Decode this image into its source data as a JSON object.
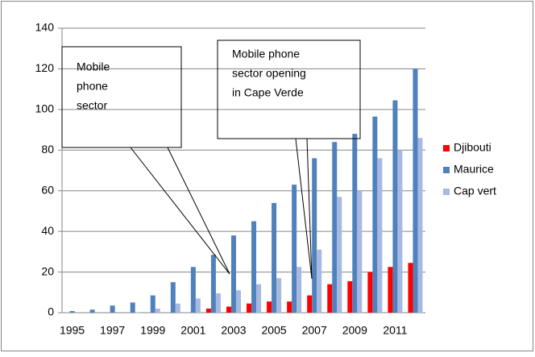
{
  "chart_data": {
    "type": "bar",
    "categories": [
      "1995",
      null,
      "1997",
      null,
      "1999",
      null,
      "2001",
      null,
      "2003",
      null,
      "2005",
      null,
      "2007",
      null,
      "2009",
      null,
      "2011",
      null
    ],
    "series": [
      {
        "name": "Djibouti",
        "color": "#ff0000",
        "values": [
          0,
          0,
          0,
          0,
          0,
          0,
          0,
          2,
          3,
          4.5,
          5.5,
          5.5,
          8.5,
          14,
          15.5,
          20,
          22.5,
          24.5
        ]
      },
      {
        "name": "Maurice",
        "color": "#4f81bd",
        "values": [
          0.8,
          1.5,
          3.5,
          5,
          8.5,
          15,
          22.5,
          28.5,
          38,
          45,
          54,
          63,
          76,
          84,
          88,
          96.5,
          104.5,
          120
        ]
      },
      {
        "name": "Cap vert",
        "color": "#a7b9e0",
        "values": [
          0,
          0,
          0,
          0.2,
          2,
          4.5,
          7,
          9.5,
          11,
          14,
          17,
          22.5,
          31,
          57,
          60,
          76,
          80,
          86
        ]
      }
    ],
    "ylim": [
      0,
      140
    ],
    "yticks": [
      0,
      20,
      40,
      60,
      80,
      100,
      120,
      140
    ],
    "grid": true,
    "legend": "right",
    "annotations": [
      {
        "lines": [
          "Mobile",
          "phone",
          "sector"
        ]
      },
      {
        "lines": [
          "Mobile phone",
          "sector opening",
          "in Cape Verde"
        ]
      }
    ]
  }
}
